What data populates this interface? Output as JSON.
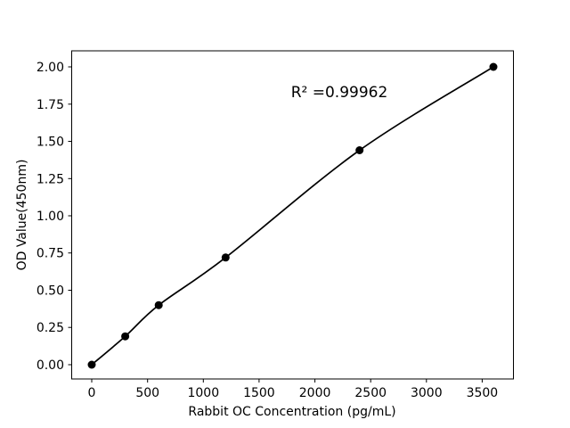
{
  "figure": {
    "background": "#ffffff"
  },
  "chart_data": {
    "type": "line",
    "title": "",
    "xlabel": "Rabbit OC Concentration (pg/mL)",
    "ylabel": "OD Value(450nm)",
    "annotation": "R² =0.99962",
    "x": [
      0,
      300,
      600,
      1200,
      2400,
      3600
    ],
    "y": [
      0.0,
      0.19,
      0.4,
      0.72,
      1.44,
      2.0
    ],
    "series_name": "Standard curve",
    "curve_style": "smooth-fit-through-points",
    "marker": "filled-circle",
    "line_color": "#000000",
    "marker_color": "#000000",
    "grid": false,
    "legend": "none",
    "xlim": [
      -180,
      3780
    ],
    "ylim": [
      -0.096,
      2.108
    ],
    "xticks": [
      0,
      500,
      1000,
      1500,
      2000,
      2500,
      3000,
      3500
    ],
    "xtick_labels": [
      "0",
      "500",
      "1000",
      "1500",
      "2000",
      "2500",
      "3000",
      "3500"
    ],
    "yticks": [
      0,
      0.25,
      0.5,
      0.75,
      1.0,
      1.25,
      1.5,
      1.75,
      2.0
    ],
    "ytick_labels": [
      "0.00",
      "0.25",
      "0.50",
      "0.75",
      "1.00",
      "1.25",
      "1.50",
      "1.75",
      "2.00"
    ]
  }
}
